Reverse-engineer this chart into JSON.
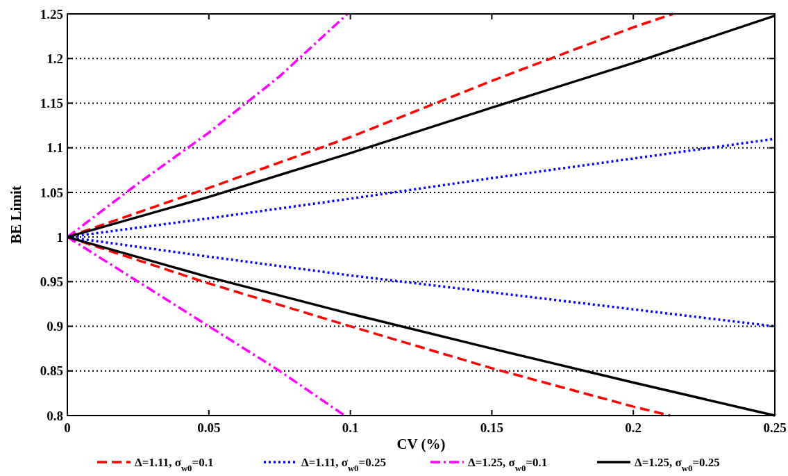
{
  "chart_data": {
    "type": "line",
    "xlabel": "CV (%)",
    "ylabel": "BE Limit",
    "xlim": [
      0,
      0.25
    ],
    "ylim": [
      0.8,
      1.25
    ],
    "xticks": [
      0,
      0.05,
      0.1,
      0.15,
      0.2,
      0.25
    ],
    "yticks": [
      0.8,
      0.85,
      0.9,
      0.95,
      1,
      1.05,
      1.1,
      1.15,
      1.2,
      1.25
    ],
    "grid": "y",
    "legend": "bottom",
    "marker": "none",
    "series": [
      {
        "name": "Δ=1.11, σ$_{w0}$=0.1",
        "color": "#ff0000",
        "line_style": "dashed",
        "x": [
          0,
          0.05,
          0.1,
          0.15,
          0.2,
          0.214
        ],
        "values": [
          1,
          1.055,
          1.112,
          1.175,
          1.235,
          1.25
        ]
      },
      {
        "color": "#ff0000",
        "line_style": "dashed",
        "x": [
          0,
          0.05,
          0.1,
          0.15,
          0.2,
          0.213
        ],
        "values": [
          1,
          0.948,
          0.9,
          0.853,
          0.81,
          0.8
        ]
      },
      {
        "name": "Δ=1.11, σ$_{w0}$=0.25",
        "color": "#0000ff",
        "line_style": "dotted",
        "x": [
          0,
          0.05,
          0.1,
          0.15,
          0.2,
          0.25
        ],
        "values": [
          1,
          1.021,
          1.043,
          1.066,
          1.088,
          1.11
        ]
      },
      {
        "color": "#0000ff",
        "line_style": "dotted",
        "x": [
          0,
          0.05,
          0.1,
          0.15,
          0.2,
          0.25
        ],
        "values": [
          1,
          0.978,
          0.957,
          0.938,
          0.919,
          0.9
        ]
      },
      {
        "name": "Δ=1.25, σ$_{w0}$=0.1",
        "color": "#ff00ff",
        "line_style": "dashdot",
        "x": [
          0,
          0.025,
          0.05,
          0.075,
          0.099
        ],
        "values": [
          1,
          1.06,
          1.117,
          1.18,
          1.25
        ]
      },
      {
        "color": "#ff00ff",
        "line_style": "dashdot",
        "x": [
          0,
          0.025,
          0.05,
          0.075,
          0.098
        ],
        "values": [
          1,
          0.95,
          0.9,
          0.85,
          0.8
        ]
      },
      {
        "name": "Δ=1.25, σ$_{w0}$=0.25",
        "color": "#000000",
        "line_style": "solid",
        "x": [
          0,
          0.05,
          0.1,
          0.15,
          0.2,
          0.25
        ],
        "values": [
          1,
          1.045,
          1.094,
          1.145,
          1.195,
          1.248
        ]
      },
      {
        "color": "#000000",
        "line_style": "solid",
        "x": [
          0,
          0.05,
          0.1,
          0.15,
          0.2,
          0.25
        ],
        "values": [
          1,
          0.955,
          0.914,
          0.875,
          0.837,
          0.8
        ]
      }
    ]
  }
}
